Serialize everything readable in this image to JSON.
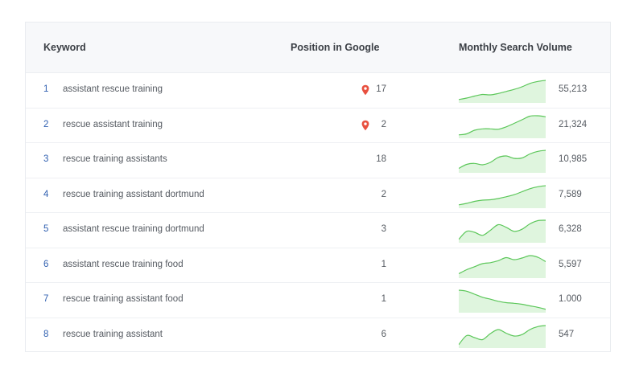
{
  "header": {
    "keyword": "Keyword",
    "position": "Position in Google",
    "volume": "Monthly Search Volume"
  },
  "colors": {
    "spark_line": "#5cc75a",
    "spark_fill": "#dff5de",
    "pin": "#e8503f",
    "index": "#2f5fb0"
  },
  "rows": [
    {
      "index": "1",
      "keyword": "assistant rescue training",
      "pinned": true,
      "position": "17",
      "volume": "55,213",
      "trend": [
        0.05,
        0.12,
        0.22,
        0.3,
        0.28,
        0.35,
        0.45,
        0.55,
        0.68,
        0.85,
        0.95,
        1.0
      ]
    },
    {
      "index": "2",
      "keyword": "rescue assistant training",
      "pinned": true,
      "position": "2",
      "volume": "21,324",
      "trend": [
        0.05,
        0.1,
        0.28,
        0.35,
        0.35,
        0.33,
        0.45,
        0.62,
        0.8,
        0.98,
        1.0,
        0.95
      ]
    },
    {
      "index": "3",
      "keyword": "rescue training assistants",
      "pinned": false,
      "position": "18",
      "volume": "10,985",
      "trend": [
        0.1,
        0.3,
        0.35,
        0.28,
        0.4,
        0.65,
        0.72,
        0.6,
        0.62,
        0.82,
        0.95,
        1.0
      ]
    },
    {
      "index": "4",
      "keyword": "rescue training assistant dortmund",
      "pinned": false,
      "position": "2",
      "volume": "7,589",
      "trend": [
        0.05,
        0.12,
        0.22,
        0.28,
        0.3,
        0.36,
        0.45,
        0.55,
        0.7,
        0.85,
        0.95,
        1.0
      ]
    },
    {
      "index": "5",
      "keyword": "assistant rescue training dortmund",
      "pinned": false,
      "position": "3",
      "volume": "6,328",
      "trend": [
        0.05,
        0.45,
        0.4,
        0.25,
        0.5,
        0.78,
        0.65,
        0.45,
        0.55,
        0.82,
        0.98,
        1.0
      ]
    },
    {
      "index": "6",
      "keyword": "assistant rescue training food",
      "pinned": false,
      "position": "1",
      "volume": "5,597",
      "trend": [
        0.1,
        0.3,
        0.45,
        0.6,
        0.65,
        0.75,
        0.9,
        0.8,
        0.88,
        1.0,
        0.92,
        0.7
      ]
    },
    {
      "index": "7",
      "keyword": "rescue training assistant food",
      "pinned": false,
      "position": "1",
      "volume": "1.000",
      "trend": [
        1.0,
        0.95,
        0.8,
        0.65,
        0.55,
        0.45,
        0.38,
        0.35,
        0.3,
        0.22,
        0.15,
        0.05
      ]
    },
    {
      "index": "8",
      "keyword": "rescue training assistant",
      "pinned": false,
      "position": "6",
      "volume": "547",
      "trend": [
        0.05,
        0.5,
        0.4,
        0.3,
        0.6,
        0.8,
        0.62,
        0.48,
        0.55,
        0.8,
        0.95,
        1.0
      ]
    }
  ]
}
